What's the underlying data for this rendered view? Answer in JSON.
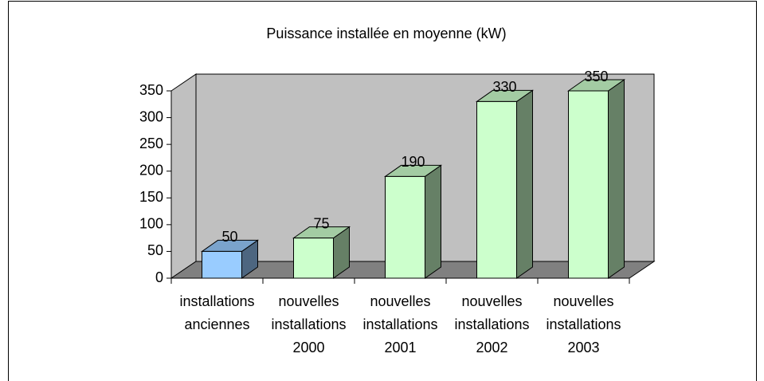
{
  "chart_data": {
    "type": "bar3d",
    "title": "Puissance installée en moyenne (kW)",
    "categories": [
      [
        "installations",
        "anciennes"
      ],
      [
        "nouvelles",
        "installations",
        "2000"
      ],
      [
        "nouvelles",
        "installations",
        "2001"
      ],
      [
        "nouvelles",
        "installations",
        "2002"
      ],
      [
        "nouvelles",
        "installations",
        "2003"
      ]
    ],
    "values": [
      50,
      75,
      190,
      330,
      350
    ],
    "colors": [
      "#99ccff",
      "#ccffcc",
      "#ccffcc",
      "#ccffcc",
      "#ccffcc"
    ],
    "ylim": [
      0,
      350
    ],
    "yticks": [
      0,
      50,
      100,
      150,
      200,
      250,
      300,
      350
    ],
    "grid": false
  }
}
